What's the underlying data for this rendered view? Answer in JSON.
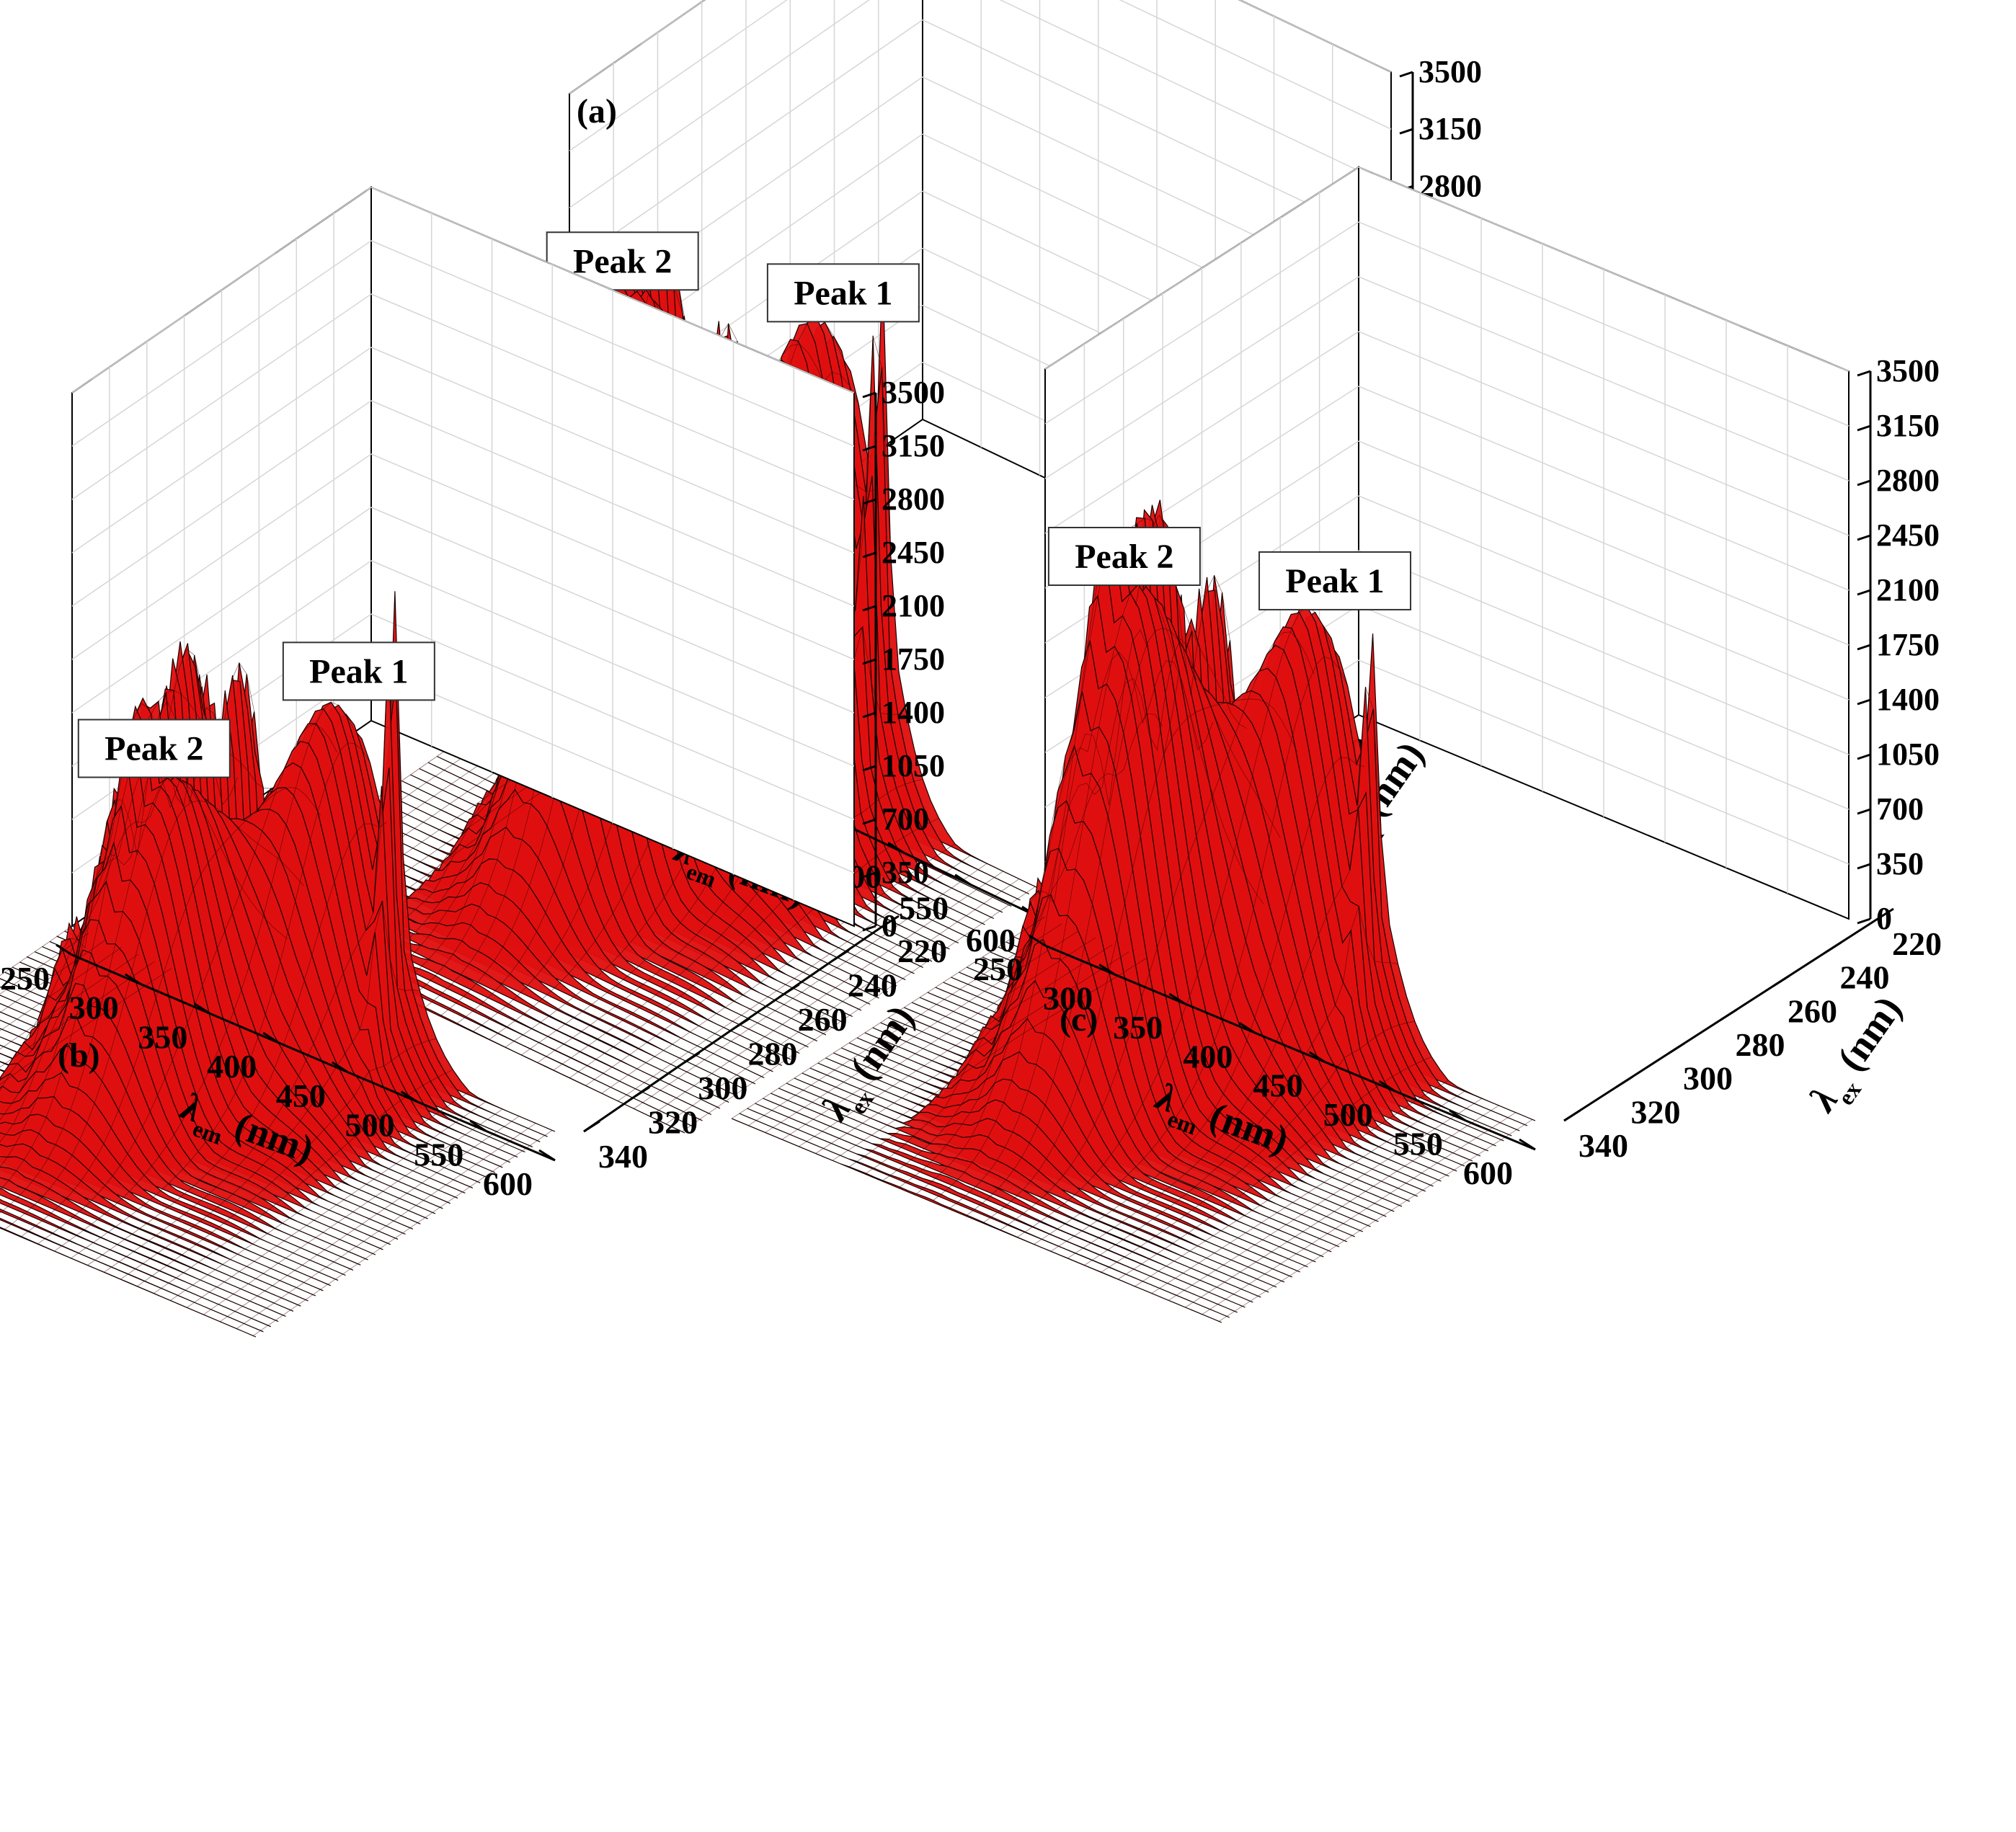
{
  "figure": {
    "panels": [
      "(a)",
      "(b)",
      "(c)"
    ]
  },
  "chart_data": [
    {
      "type": "surface",
      "panel_label": "(a)",
      "zlim": [
        0,
        3500
      ],
      "z_ticks": [
        0,
        350,
        700,
        1050,
        1400,
        1750,
        2100,
        2450,
        2800,
        3150,
        3500
      ],
      "x_label": "λem (nm)",
      "x_ticks": [
        250,
        300,
        350,
        400,
        450,
        500,
        550,
        600
      ],
      "y_label": "λex (nm)",
      "y_ticks": [
        220,
        240,
        260,
        280,
        300,
        320,
        340
      ],
      "grid": true,
      "surface_color": "#e01010",
      "annotations": [
        {
          "text": "Peak 2",
          "em": 405,
          "ex": 270,
          "z": 3450
        },
        {
          "text": "Peak 1",
          "em": 455,
          "ex": 230,
          "z": 2950
        }
      ],
      "peaks": [
        {
          "name": "Peak 2",
          "em": 405,
          "ex": 270,
          "z": 3450
        },
        {
          "name": "Peak 1",
          "em": 455,
          "ex": 230,
          "z": 2950
        }
      ],
      "edge_noise_max": 2800,
      "scatter_line_z": 1950
    },
    {
      "type": "surface",
      "panel_label": "(b)",
      "zlim": [
        0,
        3500
      ],
      "z_ticks": [
        0,
        350,
        700,
        1050,
        1400,
        1750,
        2100,
        2450,
        2800,
        3150,
        3500
      ],
      "x_label": "λem (nm)",
      "x_ticks": [
        250,
        300,
        350,
        400,
        450,
        500,
        550,
        600
      ],
      "y_label": "λex (nm)",
      "y_ticks": [
        220,
        240,
        260,
        280,
        300,
        320,
        340
      ],
      "grid": true,
      "surface_color": "#e01010",
      "annotations": [
        {
          "text": "Peak 2",
          "em": 405,
          "ex": 270,
          "z": 2050
        },
        {
          "text": "Peak 1",
          "em": 455,
          "ex": 230,
          "z": 2300
        }
      ],
      "peaks": [
        {
          "name": "Peak 2",
          "em": 405,
          "ex": 270,
          "z": 2050
        },
        {
          "name": "Peak 1",
          "em": 455,
          "ex": 230,
          "z": 2300
        }
      ],
      "edge_noise_max": 2500,
      "scatter_line_z": 2050
    },
    {
      "type": "surface",
      "panel_label": "(c)",
      "zlim": [
        0,
        3500
      ],
      "z_ticks": [
        0,
        350,
        700,
        1050,
        1400,
        1750,
        2100,
        2450,
        2800,
        3150,
        3500
      ],
      "x_label": "λem (nm)",
      "x_ticks": [
        250,
        300,
        350,
        400,
        450,
        500,
        550,
        600
      ],
      "y_label": "λex (nm)",
      "y_ticks": [
        220,
        240,
        260,
        280,
        300,
        320,
        340
      ],
      "grid": true,
      "surface_color": "#e01010",
      "annotations": [
        {
          "text": "Peak 2",
          "em": 405,
          "ex": 270,
          "z": 3150
        },
        {
          "text": "Peak 1",
          "em": 455,
          "ex": 230,
          "z": 2750
        }
      ],
      "peaks": [
        {
          "name": "Peak 2",
          "em": 405,
          "ex": 270,
          "z": 3150
        },
        {
          "name": "Peak 1",
          "em": 455,
          "ex": 230,
          "z": 2750
        }
      ],
      "edge_noise_max": 2900,
      "scatter_line_z": 1350
    }
  ]
}
